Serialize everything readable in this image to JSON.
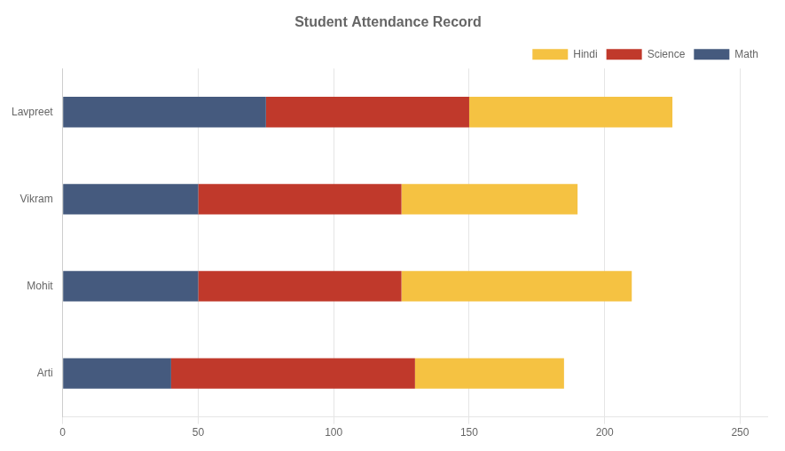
{
  "chart_data": {
    "type": "bar",
    "orientation": "horizontal",
    "stacked": true,
    "title": "Student Attendance Record",
    "categories": [
      "Arti",
      "Mohit",
      "Vikram",
      "Lavpreet"
    ],
    "series": [
      {
        "name": "Math",
        "color": "#455a7e",
        "values": [
          40,
          50,
          50,
          75
        ]
      },
      {
        "name": "Science",
        "color": "#c0392b",
        "values": [
          90,
          75,
          75,
          75
        ]
      },
      {
        "name": "Hindi",
        "color": "#f5c242",
        "values": [
          55,
          85,
          65,
          75
        ]
      }
    ],
    "xlim": [
      0,
      260
    ],
    "xticks": [
      0,
      50,
      100,
      150,
      200,
      250
    ],
    "grid": true,
    "legend": "upper right"
  }
}
